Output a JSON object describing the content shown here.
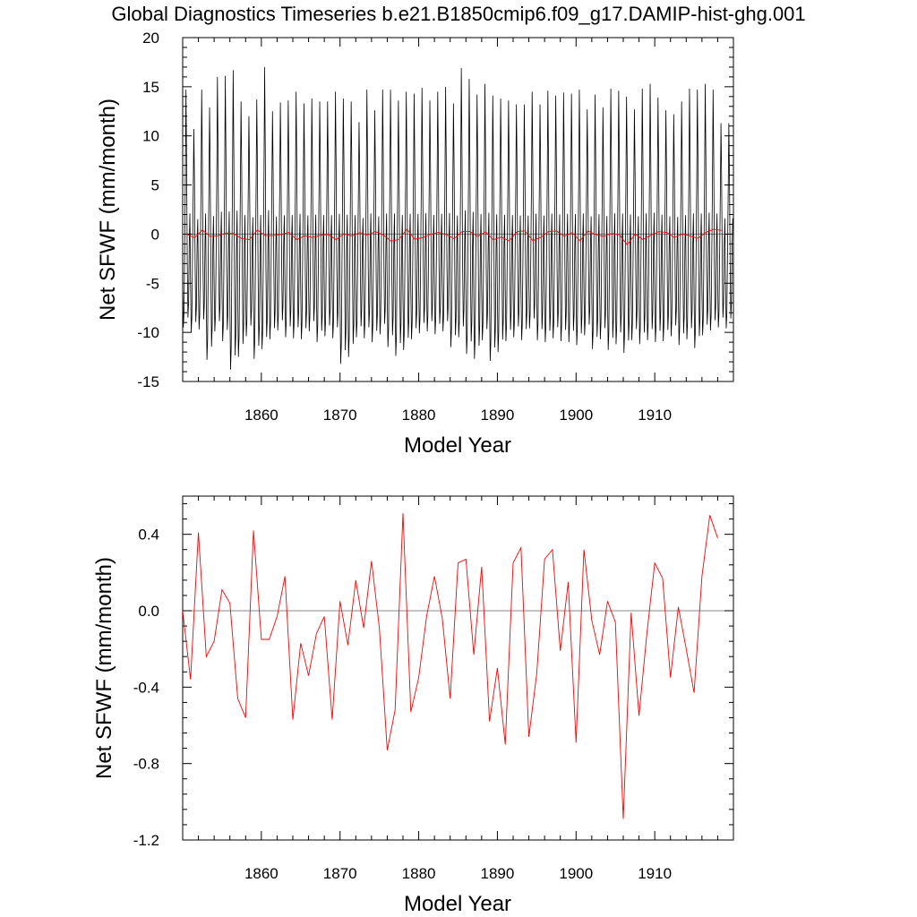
{
  "title": "Global Diagnostics Timeseries b.e21.B1850cmip6.f09_g17.DAMIP-hist-ghg.001",
  "colors": {
    "monthly": "#000000",
    "annual": "#ff0000",
    "zero_line": "#888888",
    "axis": "#000000"
  },
  "chart_data": [
    {
      "type": "line",
      "panel": "top",
      "xlabel": "Model Year",
      "ylabel": "Net SFWF (mm/month)",
      "xlim": [
        1850,
        1920
      ],
      "ylim": [
        -15,
        20
      ],
      "xticks": [
        1860,
        1870,
        1880,
        1890,
        1900,
        1910
      ],
      "xtick_labels": [
        "1860",
        "1870",
        "1880",
        "1890",
        "1900",
        "1910"
      ],
      "yticks": [
        -15,
        -10,
        -5,
        0,
        5,
        10,
        15,
        20
      ],
      "ytick_labels": [
        "-15",
        "-10",
        "-5",
        "0",
        "5",
        "10",
        "15",
        "20"
      ],
      "reference_line": 0,
      "series": [
        {
          "kind": "monthly",
          "color": "#000000",
          "x_start": 1850.0,
          "x_step": 0.0833333,
          "monthly_cycle": [
            -5.0,
            -9.5,
            -8.0,
            -2.0,
            5.0,
            14.0,
            7.0,
            -3.0,
            -8.5,
            -7.0,
            -1.0,
            2.0
          ],
          "annual_peak_max": [
            14.7,
            10.7,
            14.7,
            12.9,
            16.0,
            16.1,
            16.7,
            13.5,
            12.0,
            13.7,
            17.0,
            12.5,
            13.4,
            13.6,
            14.5,
            13.3,
            13.8,
            13.5,
            13.5,
            14.5,
            13.8,
            13.5,
            11.4,
            14.7,
            12.6,
            14.7,
            14.7,
            13.6,
            14.5,
            14.3,
            14.9,
            13.6,
            14.5,
            15.0,
            13.3,
            16.9,
            15.8,
            14.2,
            15.3,
            14.1,
            13.8,
            13.6,
            13.2,
            13.2,
            14.5,
            13.2,
            14.6,
            14.1,
            14.4,
            14.3,
            14.7,
            12.7,
            14.2,
            12.9,
            14.8,
            14.6,
            14.0,
            12.7,
            14.8,
            15.3,
            13.9,
            12.6,
            12.2,
            13.5,
            14.8,
            14.7,
            15.3,
            14.7,
            11.3,
            11.3
          ],
          "annual_trough_min": [
            -9.5,
            -10.0,
            -9.7,
            -12.8,
            -9.9,
            -10.9,
            -13.8,
            -12.5,
            -10.4,
            -12.7,
            -11.7,
            -10.7,
            -9.8,
            -10.5,
            -10.6,
            -10.7,
            -9.9,
            -11.0,
            -10.4,
            -10.6,
            -13.2,
            -12.5,
            -10.5,
            -10.6,
            -11.0,
            -10.2,
            -11.5,
            -12.4,
            -11.8,
            -10.7,
            -10.1,
            -9.9,
            -10.2,
            -9.9,
            -11.5,
            -10.5,
            -12.2,
            -12.7,
            -10.8,
            -12.9,
            -12.0,
            -10.9,
            -10.5,
            -10.8,
            -9.6,
            -10.8,
            -11.0,
            -10.6,
            -10.9,
            -11.0,
            -11.3,
            -10.3,
            -11.7,
            -10.7,
            -11.8,
            -11.2,
            -12.1,
            -10.8,
            -11.2,
            -10.8,
            -11.0,
            -10.9,
            -10.4,
            -11.3,
            -10.7,
            -11.6,
            -10.3,
            -9.8,
            -9.5,
            -9.6
          ]
        },
        {
          "kind": "annual",
          "color": "#ff0000",
          "x_start": 1850.5,
          "x_step": 1.0,
          "values_ref": "annual_mean"
        }
      ]
    },
    {
      "type": "line",
      "panel": "bottom",
      "xlabel": "Model Year",
      "ylabel": "Net SFWF (mm/month)",
      "xlim": [
        1850,
        1920
      ],
      "ylim": [
        -1.2,
        0.6
      ],
      "xticks": [
        1860,
        1870,
        1880,
        1890,
        1900,
        1910
      ],
      "xtick_labels": [
        "1860",
        "1870",
        "1880",
        "1890",
        "1900",
        "1910"
      ],
      "yticks": [
        -1.2,
        -0.8,
        -0.4,
        0.0,
        0.4
      ],
      "ytick_labels": [
        "-1.2",
        "-0.8",
        "-0.4",
        "0.0",
        "0.4"
      ],
      "reference_line": 0,
      "series": [
        {
          "kind": "annual",
          "color": "#ff0000",
          "x_start": 1850.0,
          "x_step": 1.0,
          "values": [
            0.0,
            -0.36,
            0.41,
            -0.24,
            -0.16,
            0.11,
            0.04,
            -0.46,
            -0.56,
            0.42,
            -0.15,
            -0.15,
            -0.03,
            0.18,
            -0.57,
            -0.17,
            -0.34,
            -0.12,
            -0.03,
            -0.57,
            0.05,
            -0.18,
            0.16,
            -0.09,
            0.26,
            -0.09,
            -0.73,
            -0.52,
            0.51,
            -0.53,
            -0.35,
            -0.03,
            0.18,
            -0.04,
            -0.46,
            0.25,
            0.27,
            -0.23,
            0.23,
            -0.58,
            -0.3,
            -0.7,
            0.25,
            0.33,
            -0.66,
            -0.33,
            0.27,
            0.32,
            -0.21,
            0.15,
            -0.69,
            0.32,
            -0.05,
            -0.23,
            0.05,
            -0.06,
            -1.09,
            -0.01,
            -0.55,
            -0.12,
            0.25,
            0.17,
            -0.35,
            0.02,
            -0.2,
            -0.43,
            0.18,
            0.5,
            0.38
          ]
        }
      ]
    }
  ]
}
